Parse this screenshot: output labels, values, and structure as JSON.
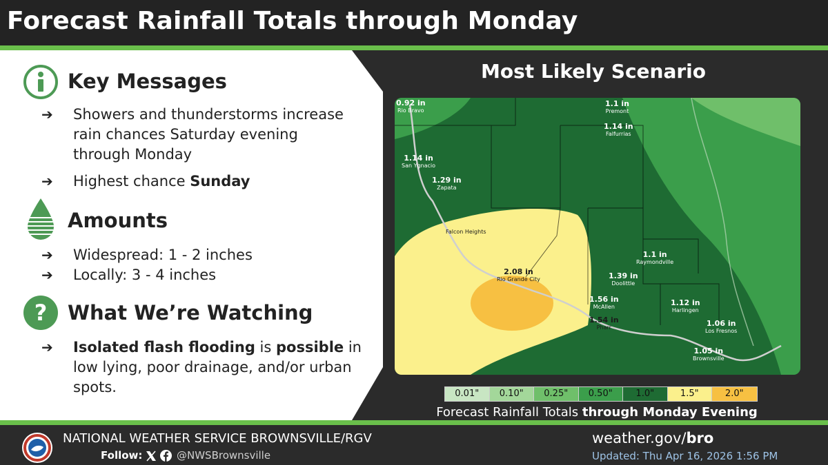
{
  "header": {
    "title": "Forecast Rainfall Totals through Monday"
  },
  "key_messages": {
    "title": "Key Messages",
    "bullets": [
      [
        "Showers and thunderstorms increase",
        "rain chances Saturday evening",
        "through Monday"
      ],
      [
        "Highest chance ",
        "Sunday"
      ]
    ]
  },
  "amounts": {
    "title": "Amounts",
    "bullets": [
      "Widespread: 1 - 2 inches",
      "Locally: 3 - 4 inches"
    ]
  },
  "watching": {
    "title": "What We’re Watching",
    "bullet": {
      "bold1": "Isolated flash flooding",
      "mid": " is ",
      "bold2": "possible",
      "rest": " in",
      "line2": "low lying, poor drainage, and/or urban",
      "line3": "spots."
    }
  },
  "scenario": {
    "title": "Most Likely Scenario"
  },
  "map": {
    "labels": [
      {
        "value": "0.92 in",
        "place": "Rio Bravo"
      },
      {
        "value": "1.1 in",
        "place": "Premont"
      },
      {
        "value": "1.14 in",
        "place": "Falfurrias"
      },
      {
        "value": "1.14 in",
        "place": "San Ygnacio"
      },
      {
        "value": "1.29 in",
        "place": "Zapata"
      },
      {
        "value": "",
        "place": "Falcon Heights"
      },
      {
        "value": "2.08 in",
        "place": "Rio Grande City"
      },
      {
        "value": "1.39 in",
        "place": "Doolittle"
      },
      {
        "value": "1.56 in",
        "place": "McAllen"
      },
      {
        "value": "1.54 in",
        "place": "Pharr"
      },
      {
        "value": "1.1 in",
        "place": "Raymondville"
      },
      {
        "value": "1.12 in",
        "place": "Harlingen"
      },
      {
        "value": "1.06 in",
        "place": "Los Fresnos"
      },
      {
        "value": "1.05 in",
        "place": "Brownsville"
      }
    ]
  },
  "legend": {
    "items": [
      {
        "label": "0.01\"",
        "color": "#c8e6c3"
      },
      {
        "label": "0.10\"",
        "color": "#a3d79a"
      },
      {
        "label": "0.25\"",
        "color": "#6fbf6a"
      },
      {
        "label": "0.50\"",
        "color": "#3b9e4b"
      },
      {
        "label": "1.0\"",
        "color": "#1e6b33"
      },
      {
        "label": "1.5\"",
        "color": "#fbf08c"
      },
      {
        "label": "2.0\"",
        "color": "#f7c042"
      }
    ],
    "caption_prefix": "Forecast Rainfall Totals ",
    "caption_bold": "through Monday Evening"
  },
  "footer": {
    "org": "NATIONAL WEATHER SERVICE BROWNSVILLE/RGV",
    "follow": "Follow:",
    "handle": "@NWSBrownsville",
    "url_prefix": "weather.gov/",
    "url_bold": "bro",
    "updated": "Updated: Thu Apr 16, 2026 1:56 PM"
  },
  "colors": {
    "accent_green": "#6abf4b",
    "icon_green": "#4d9a55",
    "header_bg": "#232323"
  },
  "icons": [
    "info-icon",
    "raindrop-icon",
    "question-icon",
    "x-logo-icon",
    "facebook-icon",
    "nws-logo-icon"
  ]
}
